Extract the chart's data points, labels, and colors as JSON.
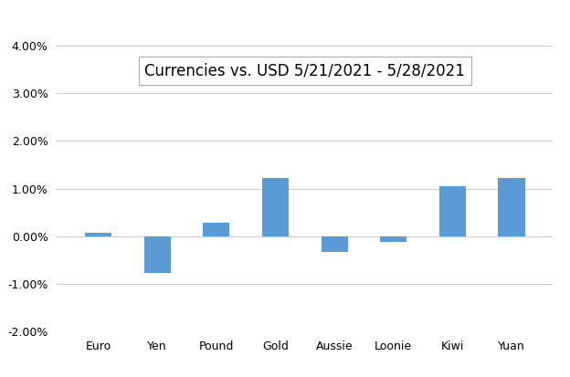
{
  "title": "Currencies vs. USD 5/21/2021 - 5/28/2021",
  "categories": [
    "Euro",
    "Yen",
    "Pound",
    "Gold",
    "Aussie",
    "Loonie",
    "Kiwi",
    "Yuan"
  ],
  "values": [
    0.0008,
    -0.0076,
    0.0028,
    0.0122,
    -0.0033,
    -0.0012,
    0.0105,
    0.0122
  ],
  "bar_color": "#5b9bd5",
  "ylim": [
    -0.02,
    0.04
  ],
  "yticks": [
    -0.02,
    -0.01,
    0.0,
    0.01,
    0.02,
    0.03,
    0.04
  ],
  "background_color": "#ffffff",
  "grid_color": "#cccccc",
  "title_fontsize": 12,
  "tick_fontsize": 9,
  "bar_width": 0.45
}
